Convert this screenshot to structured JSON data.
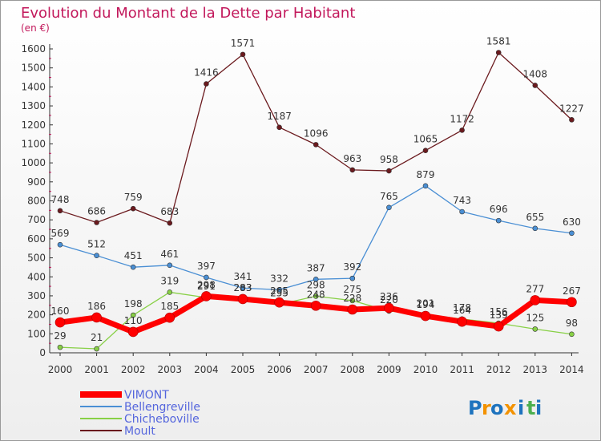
{
  "chart_data": {
    "type": "line",
    "title": "Evolution du Montant de la Dette par Habitant",
    "unit_label": "(en €)",
    "x": [
      "2000",
      "2001",
      "2002",
      "2003",
      "2004",
      "2005",
      "2006",
      "2007",
      "2008",
      "2009",
      "2010",
      "2011",
      "2012",
      "2013",
      "2014"
    ],
    "ylim": [
      0,
      1600
    ],
    "yticks": [
      0,
      100,
      200,
      300,
      400,
      500,
      600,
      700,
      800,
      900,
      1000,
      1100,
      1200,
      1300,
      1400,
      1500,
      1600
    ],
    "grid": false,
    "legend_position": "bottom-left",
    "series": [
      {
        "name": "VIMONT",
        "color": "#ff0000",
        "values": [
          160,
          186,
          110,
          185,
          298,
          283,
          265,
          248,
          228,
          236,
          194,
          164,
          139,
          277,
          267
        ]
      },
      {
        "name": "Bellengreville",
        "color": "#4a8fd4",
        "values": [
          569,
          512,
          451,
          461,
          397,
          341,
          332,
          387,
          392,
          765,
          879,
          743,
          696,
          655,
          630
        ]
      },
      {
        "name": "Chicheboville",
        "color": "#88d046",
        "values": [
          29,
          21,
          198,
          319,
          291,
          283,
          255,
          298,
          275,
          220,
          201,
          178,
          156,
          125,
          98
        ]
      },
      {
        "name": "Moult",
        "color": "#6b1a1e",
        "values": [
          748,
          686,
          759,
          683,
          1416,
          1571,
          1187,
          1096,
          963,
          958,
          1065,
          1172,
          1581,
          1408,
          1227
        ]
      }
    ]
  },
  "brand": {
    "letters": [
      "P",
      "r",
      "o",
      "x",
      "i",
      "t",
      "i"
    ],
    "colors": [
      "#1e73be",
      "#f39200",
      "#1e73be",
      "#f39200",
      "#1e73be",
      "#4caf50",
      "#1e73be"
    ]
  }
}
